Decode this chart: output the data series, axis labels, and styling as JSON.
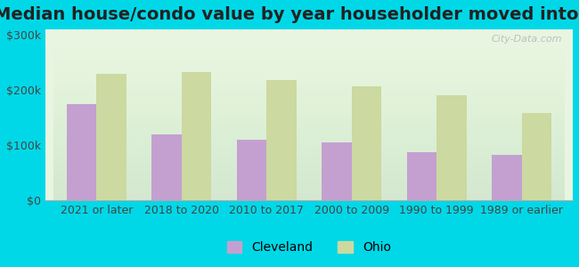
{
  "title": "Median house/condo value by year householder moved into unit",
  "categories": [
    "2021 or later",
    "2018 to 2020",
    "2010 to 2017",
    "2000 to 2009",
    "1990 to 1999",
    "1989 or earlier"
  ],
  "cleveland_values": [
    175000,
    120000,
    110000,
    105000,
    88000,
    82000
  ],
  "ohio_values": [
    230000,
    233000,
    218000,
    207000,
    190000,
    158000
  ],
  "cleveland_color": "#c4a0d0",
  "ohio_color": "#ccd9a0",
  "background_outer": "#00d8e8",
  "background_inner_top": "#e8f5e0",
  "background_inner_bottom": "#ffffff",
  "yticks": [
    0,
    100000,
    200000,
    300000
  ],
  "ytick_labels": [
    "$0",
    "$100k",
    "$200k",
    "$300k"
  ],
  "ylim": [
    0,
    310000
  ],
  "bar_width": 0.35,
  "legend_labels": [
    "Cleveland",
    "Ohio"
  ],
  "watermark": "City-Data.com",
  "title_fontsize": 14,
  "tick_fontsize": 9,
  "legend_fontsize": 10
}
